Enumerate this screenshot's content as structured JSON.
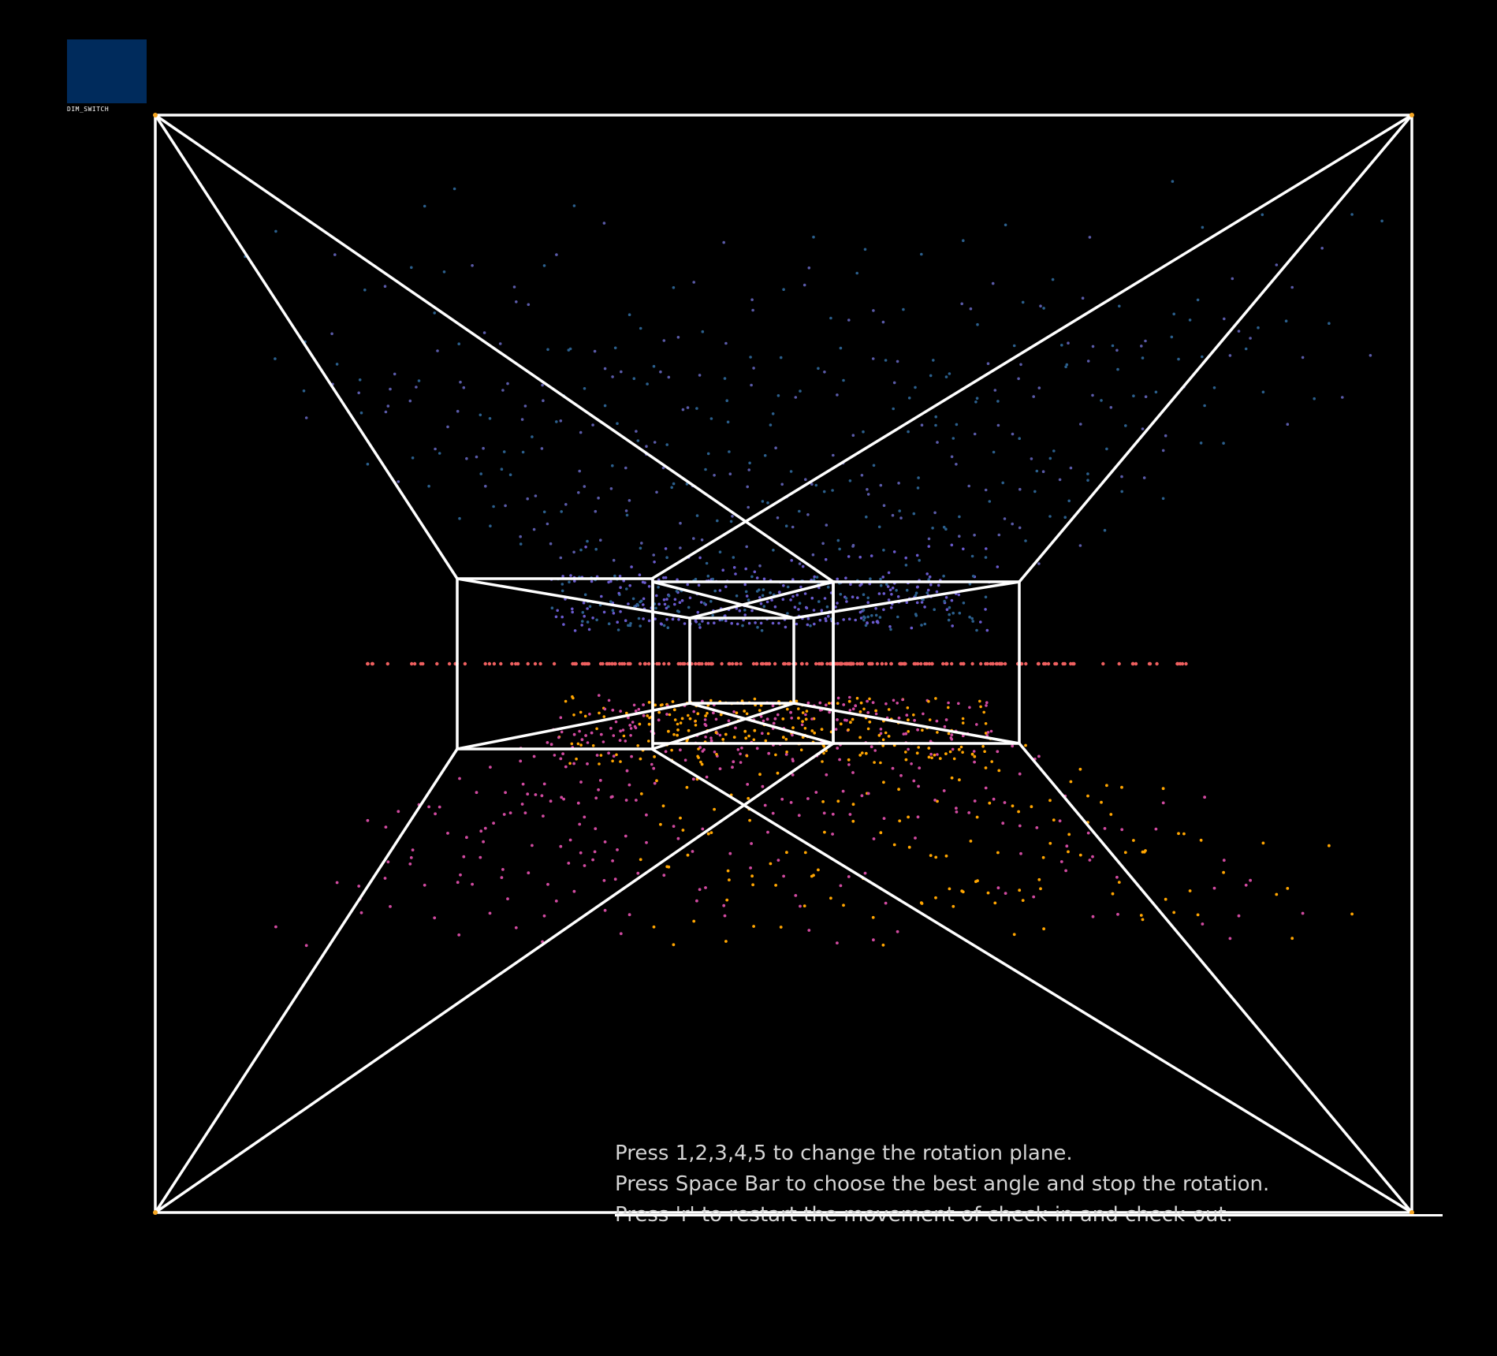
{
  "app": {
    "background": "#000000",
    "dim_switch": {
      "label": "DIM_SWITCH",
      "color": "#002b5c"
    },
    "instructions": [
      "Press 1,2,3,4,5 to change the rotation plane.",
      "Press Space Bar to choose the best angle and stop the rotation.",
      "Press 'r' to restart the movement of check-in and check-out."
    ]
  },
  "scene": {
    "wireframe_color": "#ffffff",
    "corner_marker_color": "#f5a623",
    "point_clouds": [
      {
        "name": "upper-cloud",
        "color_inner": "#1f4e79",
        "color_outer": "#6a5acd"
      },
      {
        "name": "center-line",
        "color": "#f06060"
      },
      {
        "name": "lower-cloud-magenta",
        "color": "#d04aa0"
      },
      {
        "name": "lower-cloud-orange",
        "color": "#ffa500"
      }
    ]
  }
}
